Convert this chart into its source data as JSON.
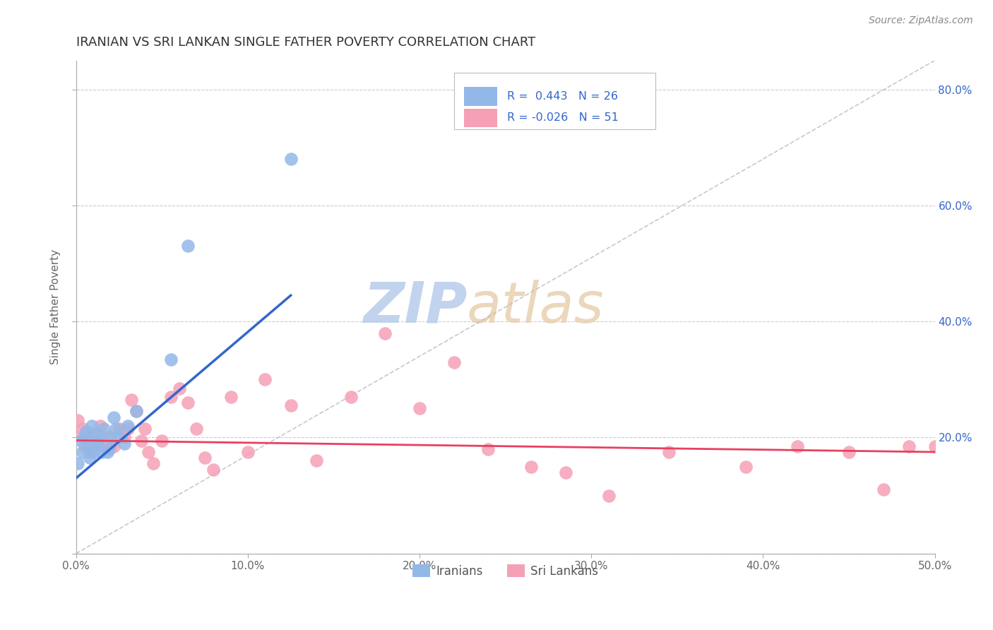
{
  "title": "IRANIAN VS SRI LANKAN SINGLE FATHER POVERTY CORRELATION CHART",
  "source": "Source: ZipAtlas.com",
  "ylabel": "Single Father Poverty",
  "xlim": [
    0.0,
    0.5
  ],
  "ylim": [
    0.0,
    0.85
  ],
  "iranian_color": "#92b8e8",
  "sri_lankan_color": "#f5a0b5",
  "iranian_line_color": "#3366cc",
  "sri_lankan_line_color": "#e84060",
  "diagonal_color": "#bbbbbb",
  "legend_text_color": "#3366cc",
  "watermark_zip_color": "#c8d8f0",
  "watermark_atlas_color": "#d8c8b0",
  "iranians_R": "0.443",
  "iranians_N": "26",
  "sri_lankans_R": "-0.026",
  "sri_lankans_N": "51",
  "iranians_x": [
    0.001,
    0.003,
    0.004,
    0.005,
    0.006,
    0.007,
    0.008,
    0.009,
    0.01,
    0.011,
    0.012,
    0.013,
    0.015,
    0.016,
    0.018,
    0.019,
    0.02,
    0.022,
    0.023,
    0.025,
    0.028,
    0.03,
    0.035,
    0.055,
    0.065,
    0.125
  ],
  "iranians_y": [
    0.155,
    0.195,
    0.175,
    0.2,
    0.21,
    0.185,
    0.165,
    0.22,
    0.175,
    0.19,
    0.205,
    0.195,
    0.175,
    0.215,
    0.175,
    0.18,
    0.2,
    0.235,
    0.215,
    0.2,
    0.19,
    0.22,
    0.245,
    0.335,
    0.53,
    0.68
  ],
  "sri_lankans_x": [
    0.001,
    0.003,
    0.004,
    0.005,
    0.006,
    0.007,
    0.008,
    0.01,
    0.012,
    0.014,
    0.015,
    0.016,
    0.018,
    0.02,
    0.022,
    0.025,
    0.028,
    0.03,
    0.032,
    0.035,
    0.038,
    0.04,
    0.042,
    0.045,
    0.05,
    0.055,
    0.06,
    0.065,
    0.07,
    0.075,
    0.08,
    0.09,
    0.1,
    0.11,
    0.125,
    0.14,
    0.16,
    0.18,
    0.2,
    0.22,
    0.24,
    0.265,
    0.285,
    0.31,
    0.345,
    0.39,
    0.42,
    0.45,
    0.47,
    0.485,
    0.5
  ],
  "sri_lankans_y": [
    0.23,
    0.2,
    0.215,
    0.185,
    0.21,
    0.195,
    0.175,
    0.205,
    0.195,
    0.22,
    0.195,
    0.185,
    0.2,
    0.185,
    0.185,
    0.215,
    0.2,
    0.215,
    0.265,
    0.245,
    0.195,
    0.215,
    0.175,
    0.155,
    0.195,
    0.27,
    0.285,
    0.26,
    0.215,
    0.165,
    0.145,
    0.27,
    0.175,
    0.3,
    0.255,
    0.16,
    0.27,
    0.38,
    0.25,
    0.33,
    0.18,
    0.15,
    0.14,
    0.1,
    0.175,
    0.15,
    0.185,
    0.175,
    0.11,
    0.185,
    0.185
  ],
  "iran_line_x0": 0.0,
  "iran_line_x1": 0.125,
  "iran_line_y0": 0.13,
  "iran_line_y1": 0.445,
  "sri_line_x0": 0.0,
  "sri_line_x1": 0.5,
  "sri_line_y0": 0.195,
  "sri_line_y1": 0.175
}
